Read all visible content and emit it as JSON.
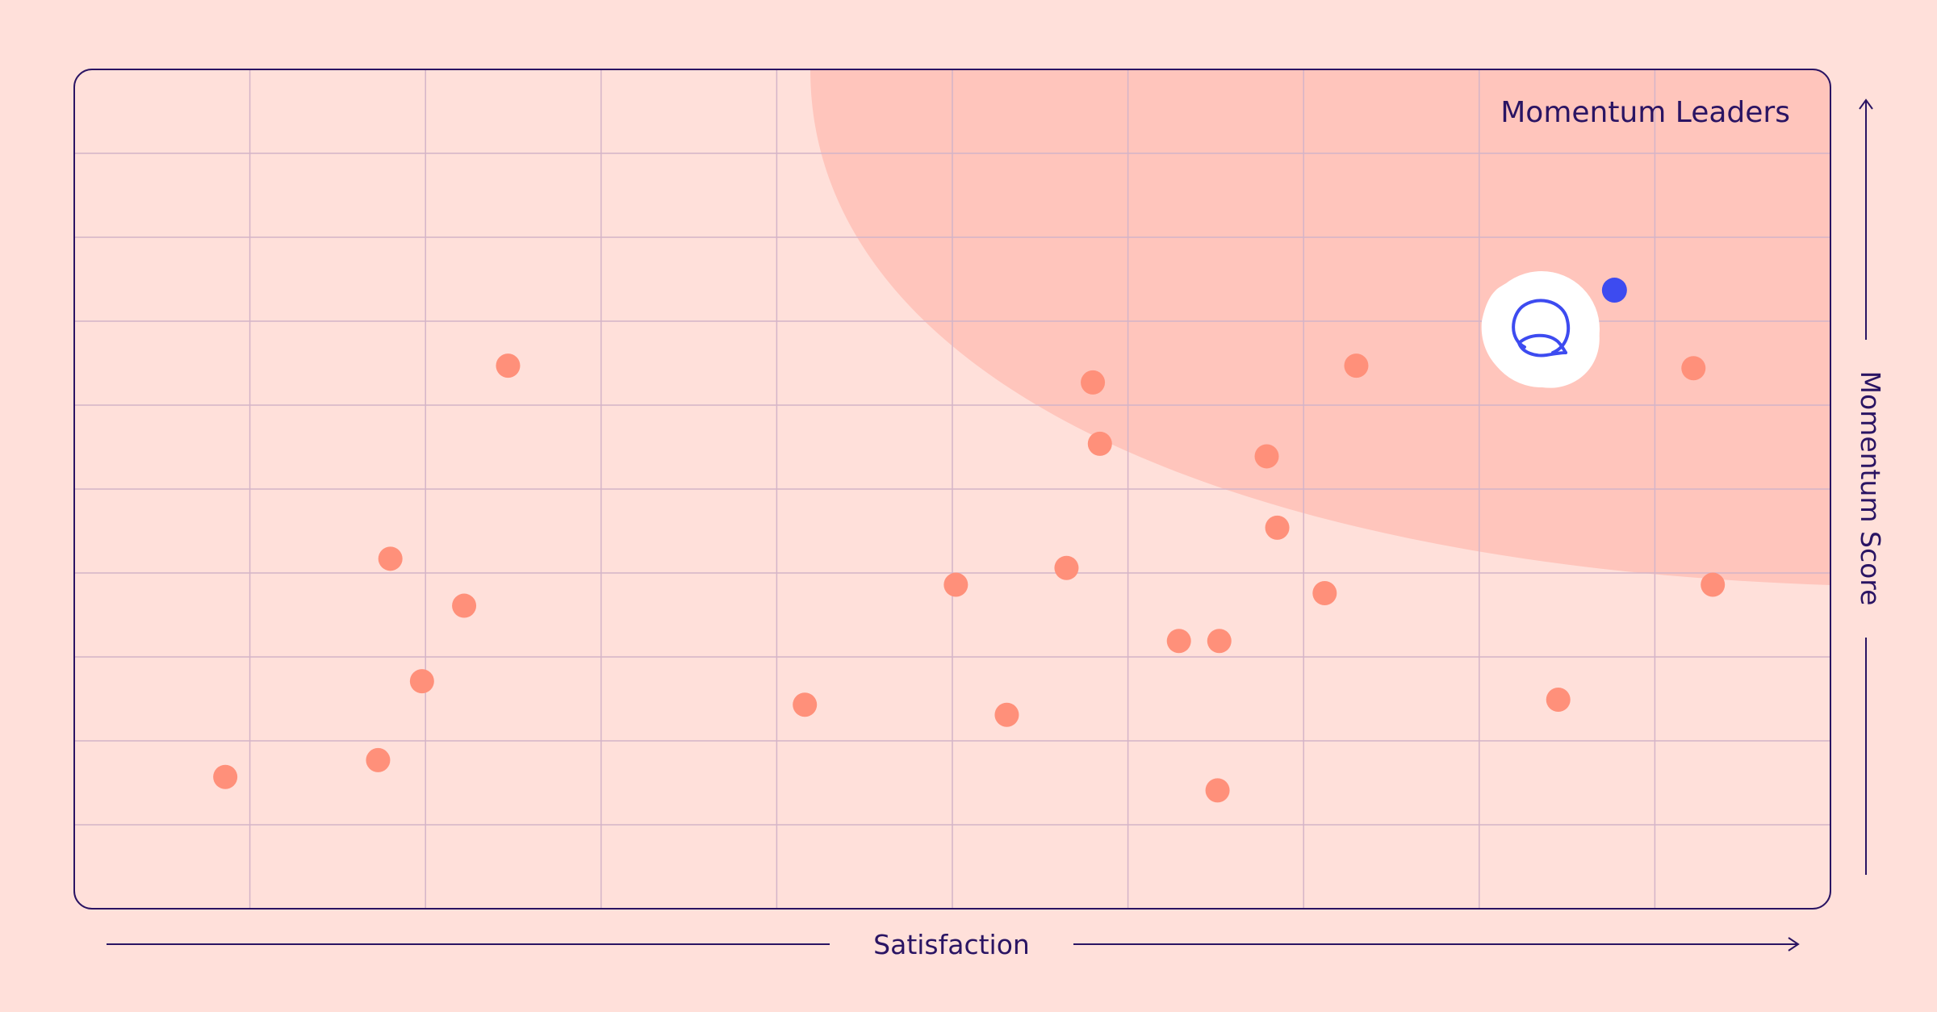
{
  "chart_data": {
    "type": "scatter",
    "title": "",
    "xlabel": "Satisfaction",
    "ylabel": "Momentum Score",
    "xlim": [
      0,
      10
    ],
    "ylim": [
      0,
      10
    ],
    "grid": true,
    "highlight_region": {
      "label": "Momentum Leaders",
      "placement": "top-right"
    },
    "series": [
      {
        "points": [
          [
            0.86,
            1.57
          ],
          [
            1.73,
            1.77
          ],
          [
            1.8,
            4.17
          ],
          [
            1.98,
            2.71
          ],
          [
            2.22,
            3.61
          ],
          [
            2.47,
            6.47
          ],
          [
            4.16,
            2.43
          ],
          [
            5.02,
            3.86
          ],
          [
            5.31,
            2.31
          ],
          [
            5.65,
            4.06
          ],
          [
            5.8,
            6.27
          ],
          [
            5.84,
            5.54
          ],
          [
            6.29,
            3.19
          ],
          [
            6.51,
            1.41
          ],
          [
            6.52,
            3.19
          ],
          [
            6.79,
            5.39
          ],
          [
            6.85,
            4.54
          ],
          [
            7.12,
            3.76
          ],
          [
            7.3,
            6.47
          ],
          [
            8.45,
            2.49
          ],
          [
            9.22,
            6.44
          ],
          [
            9.33,
            3.86
          ]
        ],
        "color": "#FF907A"
      },
      {
        "points": [
          [
            8.77,
            7.37
          ]
        ],
        "color": "#3D4BF0"
      }
    ]
  },
  "colors": {
    "background": "#FFE0DA",
    "region": "#FFC5BC",
    "grid": "#D4B4C8",
    "frame": "#2A1463",
    "marker": "#FF907A",
    "highlight": "#3D4BF0",
    "logo": "#3D4BF0"
  },
  "icons": {
    "highlight_logo": "wave-globe-icon"
  }
}
